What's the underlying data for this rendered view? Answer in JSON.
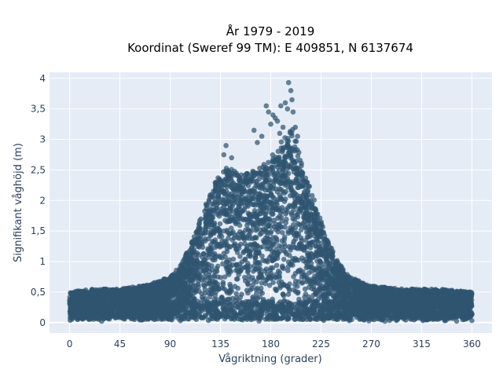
{
  "chart_data": {
    "type": "scatter",
    "title_line1": "År 1979 - 2019",
    "title_line2": "Koordinat (Sweref 99 TM): E 409851, N 6137674",
    "xlabel": "Vågriktning (grader)",
    "ylabel": "Signifikant våghöjd (m)",
    "xlim": [
      -18,
      378
    ],
    "ylim": [
      -0.17,
      4.1
    ],
    "xticks": [
      0,
      45,
      90,
      135,
      180,
      225,
      270,
      315,
      360
    ],
    "xtick_labels": [
      "0",
      "45",
      "90",
      "135",
      "180",
      "225",
      "270",
      "315",
      "360"
    ],
    "yticks": [
      0,
      0.5,
      1,
      1.5,
      2,
      2.5,
      3,
      3.5,
      4
    ],
    "ytick_labels": [
      "0",
      "0,5",
      "1",
      "1,5",
      "2",
      "2,5",
      "3",
      "3,5",
      "4"
    ],
    "grid": true,
    "background": "#e5ecf6",
    "marker_color": "#2f5570",
    "envelope": {
      "x": [
        0,
        20,
        45,
        70,
        90,
        100,
        110,
        120,
        130,
        140,
        150,
        160,
        170,
        180,
        190,
        200,
        205,
        210,
        220,
        230,
        240,
        250,
        270,
        300,
        330,
        360
      ],
      "ymax": [
        0.5,
        0.55,
        0.55,
        0.62,
        0.75,
        0.95,
        1.35,
        1.85,
        2.3,
        2.55,
        2.5,
        2.45,
        2.55,
        2.7,
        3.0,
        3.2,
        2.8,
        2.5,
        1.95,
        1.4,
        1.0,
        0.75,
        0.6,
        0.55,
        0.55,
        0.5
      ]
    },
    "peaks": [
      {
        "x": 140,
        "y": 2.9
      },
      {
        "x": 138,
        "y": 2.75
      },
      {
        "x": 145,
        "y": 2.7
      },
      {
        "x": 165,
        "y": 3.15
      },
      {
        "x": 168,
        "y": 2.95
      },
      {
        "x": 172,
        "y": 3.05
      },
      {
        "x": 176,
        "y": 3.55
      },
      {
        "x": 178,
        "y": 3.45
      },
      {
        "x": 180,
        "y": 3.25
      },
      {
        "x": 184,
        "y": 3.35
      },
      {
        "x": 186,
        "y": 3.3
      },
      {
        "x": 188,
        "y": 3.1
      },
      {
        "x": 191,
        "y": 3.2
      },
      {
        "x": 193,
        "y": 3.6
      },
      {
        "x": 195,
        "y": 3.5
      },
      {
        "x": 196,
        "y": 3.93
      },
      {
        "x": 198,
        "y": 3.8
      },
      {
        "x": 199,
        "y": 3.65
      },
      {
        "x": 200,
        "y": 3.45
      },
      {
        "x": 202,
        "y": 3.2
      },
      {
        "x": 204,
        "y": 3.05
      },
      {
        "x": 189,
        "y": 3.55
      },
      {
        "x": 182,
        "y": 3.4
      }
    ]
  }
}
